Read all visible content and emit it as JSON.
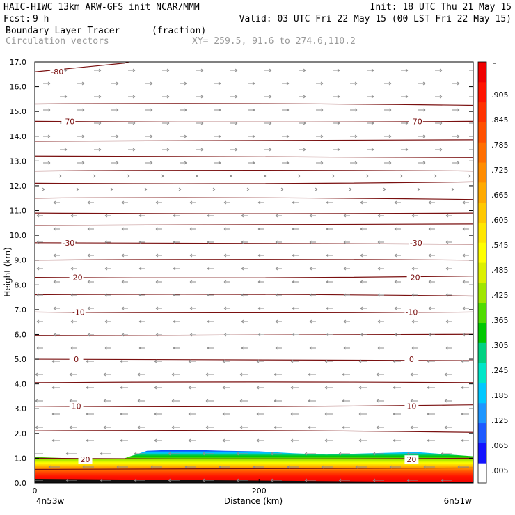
{
  "header": {
    "title_left": "HAIC-HIWC 13km ARW-GFS init   NCAR/MMM",
    "init": "Init: 18 UTC Thu 21 May 15",
    "fcst_label": "Fcst:",
    "fcst_value": "9 h",
    "valid": "Valid: 03 UTC Fri 22 May 15 (00 LST Fri 22 May 15)",
    "field_name": "Boundary Layer Tracer",
    "field_units": "(fraction)",
    "vector_label": "Circulation vectors",
    "xy_label": "XY= 259.5, 91.6 to 274.6,110.2"
  },
  "colors": {
    "contour": "#7a1010",
    "vector": "#8c8c8c",
    "scale": [
      "#ffffff",
      "#1414ff",
      "#1e5aff",
      "#1e96ff",
      "#00c8ff",
      "#00e6c8",
      "#00d282",
      "#00c800",
      "#50dc00",
      "#a0e600",
      "#dcf000",
      "#ffff00",
      "#ffe600",
      "#ffc800",
      "#ffaa00",
      "#ff8c00",
      "#ff6e00",
      "#ff5000",
      "#ff3200",
      "#ff1400",
      "#f00000"
    ]
  },
  "chart_data": {
    "type": "cross-section",
    "ylabel": "Height (km)",
    "xlabel": "Distance (km)",
    "ylim": [
      0,
      17
    ],
    "xlim": [
      0,
      391
    ],
    "y_ticks": [
      "0.0",
      "1.0",
      "2.0",
      "3.0",
      "4.0",
      "5.0",
      "6.0",
      "7.0",
      "8.0",
      "9.0",
      "10.0",
      "11.0",
      "12.0",
      "13.0",
      "14.0",
      "15.0",
      "16.0",
      "17.0"
    ],
    "x_ticks": [
      {
        "value": 0,
        "label": "0"
      },
      {
        "value": 200,
        "label": "200"
      }
    ],
    "x_end_labels": {
      "left": "4n53w",
      "right": "6n51w"
    },
    "colorbar_labels": [
      ".005",
      ".065",
      ".125",
      ".185",
      ".245",
      ".305",
      ".365",
      ".425",
      ".485",
      ".545",
      ".605",
      ".665",
      ".725",
      ".785",
      ".845",
      ".905"
    ],
    "colorbar_top_label": "–",
    "contour_labels": [
      {
        "text": "-80",
        "x": 20,
        "y": 16.6
      },
      {
        "text": "-70",
        "x": 30,
        "y": 14.6
      },
      {
        "text": "-70",
        "x": 340,
        "y": 14.6
      },
      {
        "text": "-30",
        "x": 30,
        "y": 9.7
      },
      {
        "text": "-30",
        "x": 340,
        "y": 9.7
      },
      {
        "text": "-20",
        "x": 37,
        "y": 8.3
      },
      {
        "text": "-20",
        "x": 338,
        "y": 8.3
      },
      {
        "text": "-10",
        "x": 39,
        "y": 6.9
      },
      {
        "text": "-10",
        "x": 336,
        "y": 6.9
      },
      {
        "text": "0",
        "x": 37,
        "y": 5.0
      },
      {
        "text": "0",
        "x": 336,
        "y": 5.0
      },
      {
        "text": "10",
        "x": 37,
        "y": 3.1
      },
      {
        "text": "10",
        "x": 336,
        "y": 3.1
      },
      {
        "text": "20",
        "x": 45,
        "y": 0.95
      },
      {
        "text": "20",
        "x": 336,
        "y": 0.95
      }
    ],
    "contour_levels_km": [
      0.55,
      1.0,
      2.1,
      3.1,
      4.05,
      5.0,
      5.95,
      6.9,
      7.6,
      8.3,
      9.0,
      9.7,
      10.4,
      10.9,
      11.5,
      12.1,
      12.6,
      13.2,
      13.8,
      14.6,
      15.3
    ],
    "pbl_top_km": [
      [
        0,
        1.05
      ],
      [
        30,
        1.0
      ],
      [
        80,
        1.0
      ],
      [
        100,
        1.3
      ],
      [
        130,
        1.35
      ],
      [
        170,
        1.3
      ],
      [
        200,
        1.28
      ],
      [
        230,
        1.2
      ],
      [
        260,
        1.15
      ],
      [
        300,
        1.2
      ],
      [
        340,
        1.25
      ],
      [
        391,
        1.08
      ]
    ]
  }
}
